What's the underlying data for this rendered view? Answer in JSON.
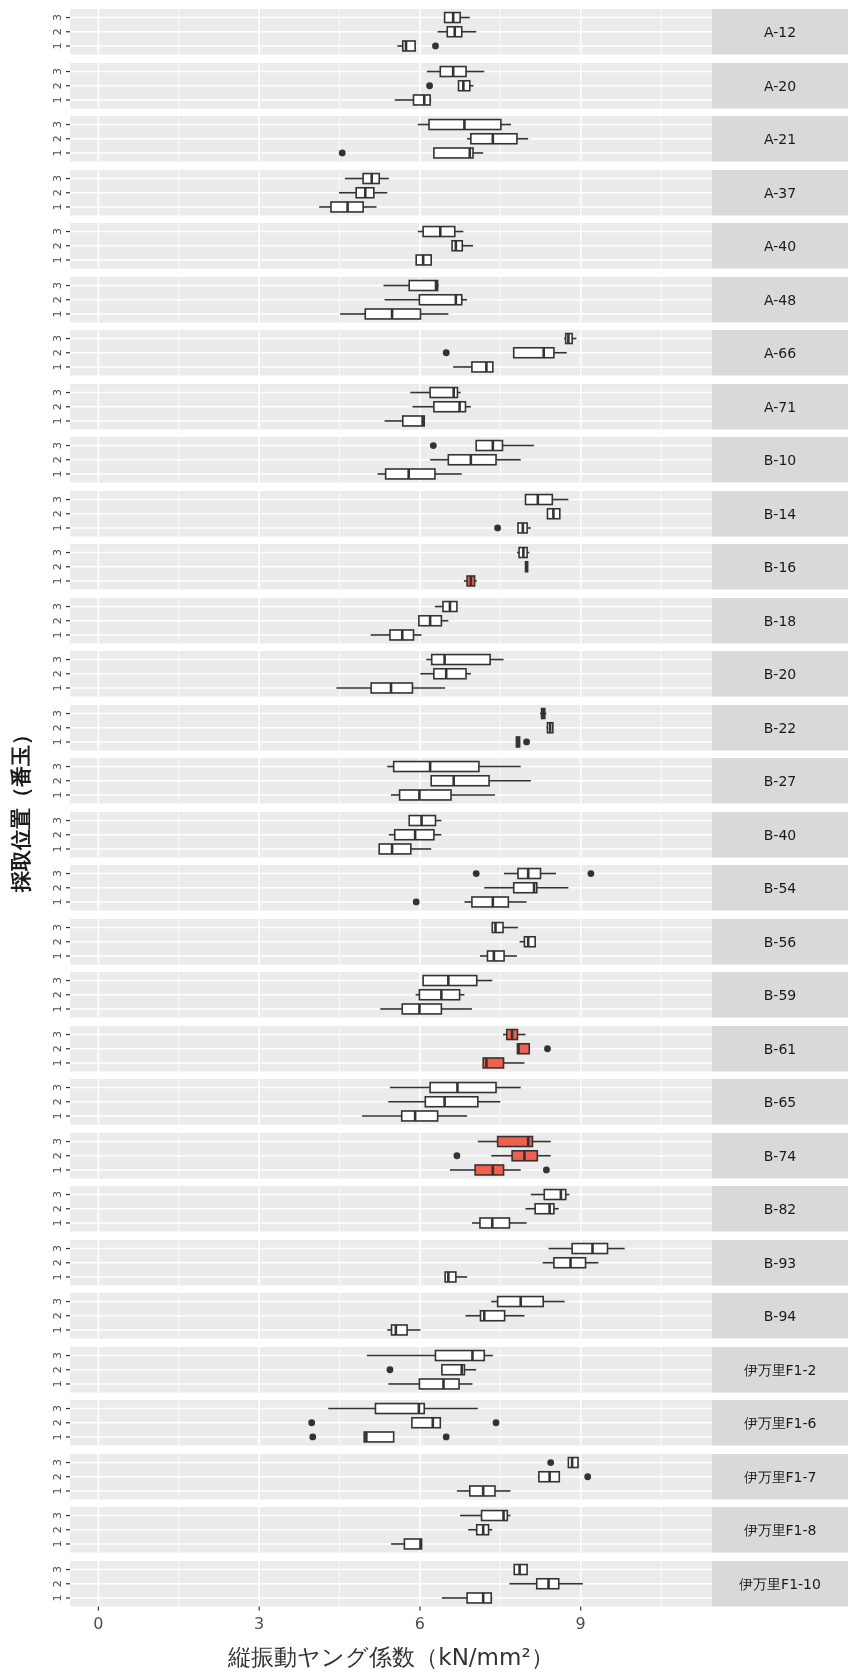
{
  "chart_data": [
    {
      "type": "box",
      "orientation": "horizontal",
      "annotations": [
        "A-12"
      ],
      "categories": [
        "3",
        "2",
        "1"
      ],
      "colors": [
        "#ffffff",
        "#ffffff",
        "#ffffff"
      ],
      "xlim": [
        -0.53,
        11.45
      ],
      "xticks": [
        0,
        3,
        6,
        9
      ],
      "grid": true,
      "tick_labels": "y",
      "boxes": [
        {
          "low": 6.45,
          "q1": 6.46,
          "median": 6.62,
          "q3": 6.75,
          "high": 6.93
        },
        {
          "low": 6.33,
          "q1": 6.51,
          "median": 6.65,
          "q3": 6.78,
          "high": 7.05
        },
        {
          "low": 5.58,
          "q1": 5.68,
          "median": 5.74,
          "q3": 5.91,
          "high": 5.91,
          "outliers": [
            6.29
          ]
        }
      ]
    },
    {
      "type": "box",
      "orientation": "horizontal",
      "annotations": [
        "A-20"
      ],
      "categories": [
        "3",
        "2",
        "1"
      ],
      "colors": [
        "#ffffff",
        "#ffffff",
        "#ffffff"
      ],
      "xlim": [
        -0.53,
        11.45
      ],
      "xticks": [
        0,
        3,
        6,
        9
      ],
      "grid": true,
      "tick_labels": "y",
      "boxes": [
        {
          "low": 6.13,
          "q1": 6.38,
          "median": 6.62,
          "q3": 6.86,
          "high": 7.2
        },
        {
          "low": 6.72,
          "q1": 6.72,
          "median": 6.81,
          "q3": 6.93,
          "high": 7.0,
          "outliers": [
            6.18
          ]
        },
        {
          "low": 5.53,
          "q1": 5.88,
          "median": 6.08,
          "q3": 6.19,
          "high": 6.21
        }
      ]
    },
    {
      "type": "box",
      "orientation": "horizontal",
      "annotations": [
        "A-21"
      ],
      "categories": [
        "3",
        "2",
        "1"
      ],
      "colors": [
        "#ffffff",
        "#ffffff",
        "#ffffff"
      ],
      "xlim": [
        -0.53,
        11.45
      ],
      "xticks": [
        0,
        3,
        6,
        9
      ],
      "grid": true,
      "tick_labels": "y",
      "boxes": [
        {
          "low": 5.96,
          "q1": 6.17,
          "median": 6.83,
          "q3": 7.51,
          "high": 7.7
        },
        {
          "low": 6.88,
          "q1": 6.95,
          "median": 7.36,
          "q3": 7.81,
          "high": 8.02
        },
        {
          "low": 6.26,
          "q1": 6.26,
          "median": 6.93,
          "q3": 6.99,
          "high": 7.18,
          "outliers": [
            4.55
          ]
        }
      ]
    },
    {
      "type": "box",
      "orientation": "horizontal",
      "annotations": [
        "A-37"
      ],
      "categories": [
        "3",
        "2",
        "1"
      ],
      "colors": [
        "#ffffff",
        "#ffffff",
        "#ffffff"
      ],
      "xlim": [
        -0.53,
        11.45
      ],
      "xticks": [
        0,
        3,
        6,
        9
      ],
      "grid": true,
      "tick_labels": "y",
      "boxes": [
        {
          "low": 4.6,
          "q1": 4.94,
          "median": 5.1,
          "q3": 5.24,
          "high": 5.42
        },
        {
          "low": 4.49,
          "q1": 4.81,
          "median": 4.98,
          "q3": 5.14,
          "high": 5.39
        },
        {
          "low": 4.12,
          "q1": 4.34,
          "median": 4.65,
          "q3": 4.94,
          "high": 5.19
        }
      ]
    },
    {
      "type": "box",
      "orientation": "horizontal",
      "annotations": [
        "A-40"
      ],
      "categories": [
        "3",
        "2",
        "1"
      ],
      "colors": [
        "#ffffff",
        "#ffffff",
        "#ffffff"
      ],
      "xlim": [
        -0.53,
        11.45
      ],
      "xticks": [
        0,
        3,
        6,
        9
      ],
      "grid": true,
      "tick_labels": "y",
      "boxes": [
        {
          "low": 5.96,
          "q1": 6.06,
          "median": 6.38,
          "q3": 6.65,
          "high": 6.81
        },
        {
          "low": 6.6,
          "q1": 6.6,
          "median": 6.67,
          "q3": 6.79,
          "high": 6.99
        },
        {
          "low": 5.93,
          "q1": 5.93,
          "median": 6.06,
          "q3": 6.21,
          "high": 6.21
        }
      ]
    },
    {
      "type": "box",
      "orientation": "horizontal",
      "annotations": [
        "A-48"
      ],
      "categories": [
        "3",
        "2",
        "1"
      ],
      "colors": [
        "#ffffff",
        "#ffffff",
        "#ffffff"
      ],
      "xlim": [
        -0.53,
        11.45
      ],
      "xticks": [
        0,
        3,
        6,
        9
      ],
      "grid": true,
      "tick_labels": "y",
      "boxes": [
        {
          "low": 5.32,
          "q1": 5.8,
          "median": 6.3,
          "q3": 6.33,
          "high": 6.35
        },
        {
          "low": 5.34,
          "q1": 5.99,
          "median": 6.67,
          "q3": 6.78,
          "high": 6.88
        },
        {
          "low": 4.51,
          "q1": 4.98,
          "median": 5.48,
          "q3": 6.01,
          "high": 6.53
        }
      ]
    },
    {
      "type": "box",
      "orientation": "horizontal",
      "annotations": [
        "A-66"
      ],
      "categories": [
        "3",
        "2",
        "1"
      ],
      "colors": [
        "#ffffff",
        "#ffffff",
        "#ffffff"
      ],
      "xlim": [
        -0.53,
        11.45
      ],
      "xticks": [
        0,
        3,
        6,
        9
      ],
      "grid": true,
      "tick_labels": "y",
      "boxes": [
        {
          "low": 8.69,
          "q1": 8.72,
          "median": 8.77,
          "q3": 8.84,
          "high": 8.92
        },
        {
          "low": 7.75,
          "q1": 7.75,
          "median": 8.31,
          "q3": 8.5,
          "high": 8.74,
          "outliers": [
            6.49
          ]
        },
        {
          "low": 6.62,
          "q1": 6.97,
          "median": 7.24,
          "q3": 7.36,
          "high": 7.36
        }
      ]
    },
    {
      "type": "box",
      "orientation": "horizontal",
      "annotations": [
        "A-71"
      ],
      "categories": [
        "3",
        "2",
        "1"
      ],
      "colors": [
        "#ffffff",
        "#ffffff",
        "#ffffff"
      ],
      "xlim": [
        -0.53,
        11.45
      ],
      "xticks": [
        0,
        3,
        6,
        9
      ],
      "grid": true,
      "tick_labels": "y",
      "boxes": [
        {
          "low": 5.82,
          "q1": 6.19,
          "median": 6.63,
          "q3": 6.7,
          "high": 6.76
        },
        {
          "low": 5.86,
          "q1": 6.26,
          "median": 6.74,
          "q3": 6.85,
          "high": 6.95
        },
        {
          "low": 5.34,
          "q1": 5.68,
          "median": 6.05,
          "q3": 6.08,
          "high": 6.08
        }
      ]
    },
    {
      "type": "box",
      "orientation": "horizontal",
      "annotations": [
        "B-10"
      ],
      "categories": [
        "3",
        "2",
        "1"
      ],
      "colors": [
        "#ffffff",
        "#ffffff",
        "#ffffff"
      ],
      "xlim": [
        -0.53,
        11.45
      ],
      "xticks": [
        0,
        3,
        6,
        9
      ],
      "grid": true,
      "tick_labels": "y",
      "boxes": [
        {
          "low": 7.05,
          "q1": 7.05,
          "median": 7.36,
          "q3": 7.54,
          "high": 8.13,
          "outliers": [
            6.25
          ]
        },
        {
          "low": 6.19,
          "q1": 6.53,
          "median": 6.95,
          "q3": 7.42,
          "high": 7.88
        },
        {
          "low": 5.21,
          "q1": 5.36,
          "median": 5.79,
          "q3": 6.28,
          "high": 6.78
        }
      ]
    },
    {
      "type": "box",
      "orientation": "horizontal",
      "annotations": [
        "B-14"
      ],
      "categories": [
        "3",
        "2",
        "1"
      ],
      "colors": [
        "#ffffff",
        "#ffffff",
        "#ffffff"
      ],
      "xlim": [
        -0.53,
        11.45
      ],
      "xticks": [
        0,
        3,
        6,
        9
      ],
      "grid": true,
      "tick_labels": "y",
      "boxes": [
        {
          "low": 7.97,
          "q1": 7.97,
          "median": 8.2,
          "q3": 8.47,
          "high": 8.77
        },
        {
          "low": 8.38,
          "q1": 8.38,
          "median": 8.49,
          "q3": 8.61,
          "high": 8.61
        },
        {
          "low": 7.83,
          "q1": 7.83,
          "median": 7.92,
          "q3": 8.0,
          "high": 8.07,
          "outliers": [
            7.45
          ]
        }
      ]
    },
    {
      "type": "box",
      "orientation": "horizontal",
      "annotations": [
        "B-16"
      ],
      "categories": [
        "3",
        "2",
        "1"
      ],
      "colors": [
        "#ffffff",
        "#ffffff",
        "#f0604d"
      ],
      "xlim": [
        -0.53,
        11.45
      ],
      "xticks": [
        0,
        3,
        6,
        9
      ],
      "grid": true,
      "tick_labels": "y",
      "boxes": [
        {
          "low": 7.81,
          "q1": 7.85,
          "median": 7.93,
          "q3": 8.0,
          "high": 8.04
        },
        {
          "low": 7.97,
          "q1": 7.97,
          "median": 7.99,
          "q3": 8.01,
          "high": 8.01
        },
        {
          "low": 6.82,
          "q1": 6.88,
          "median": 6.95,
          "q3": 7.02,
          "high": 7.06
        }
      ]
    },
    {
      "type": "box",
      "orientation": "horizontal",
      "annotations": [
        "B-18"
      ],
      "categories": [
        "3",
        "2",
        "1"
      ],
      "colors": [
        "#ffffff",
        "#ffffff",
        "#ffffff"
      ],
      "xlim": [
        -0.53,
        11.45
      ],
      "xticks": [
        0,
        3,
        6,
        9
      ],
      "grid": true,
      "tick_labels": "y",
      "boxes": [
        {
          "low": 6.28,
          "q1": 6.43,
          "median": 6.56,
          "q3": 6.69,
          "high": 6.69
        },
        {
          "low": 5.98,
          "q1": 5.98,
          "median": 6.19,
          "q3": 6.4,
          "high": 6.53
        },
        {
          "low": 5.08,
          "q1": 5.44,
          "median": 5.67,
          "q3": 5.88,
          "high": 6.03
        }
      ]
    },
    {
      "type": "box",
      "orientation": "horizontal",
      "annotations": [
        "B-20"
      ],
      "categories": [
        "3",
        "2",
        "1"
      ],
      "colors": [
        "#ffffff",
        "#ffffff",
        "#ffffff"
      ],
      "xlim": [
        -0.53,
        11.45
      ],
      "xticks": [
        0,
        3,
        6,
        9
      ],
      "grid": true,
      "tick_labels": "y",
      "boxes": [
        {
          "low": 6.12,
          "q1": 6.22,
          "median": 6.46,
          "q3": 7.31,
          "high": 7.56
        },
        {
          "low": 6.01,
          "q1": 6.26,
          "median": 6.49,
          "q3": 6.86,
          "high": 6.95
        },
        {
          "low": 4.44,
          "q1": 5.09,
          "median": 5.46,
          "q3": 5.86,
          "high": 6.47
        }
      ]
    },
    {
      "type": "box",
      "orientation": "horizontal",
      "annotations": [
        "B-22"
      ],
      "categories": [
        "3",
        "2",
        "1"
      ],
      "colors": [
        "#ffffff",
        "#ffffff",
        "#ffffff"
      ],
      "xlim": [
        -0.53,
        11.45
      ],
      "xticks": [
        0,
        3,
        6,
        9
      ],
      "grid": true,
      "tick_labels": "y",
      "boxes": [
        {
          "low": 8.24,
          "q1": 8.27,
          "median": 8.3,
          "q3": 8.33,
          "high": 8.36
        },
        {
          "low": 8.36,
          "q1": 8.38,
          "median": 8.43,
          "q3": 8.48,
          "high": 8.49
        },
        {
          "low": 7.8,
          "q1": 7.8,
          "median": 7.83,
          "q3": 7.86,
          "high": 7.86,
          "outliers": [
            7.99
          ]
        }
      ]
    },
    {
      "type": "box",
      "orientation": "horizontal",
      "annotations": [
        "B-27"
      ],
      "categories": [
        "3",
        "2",
        "1"
      ],
      "colors": [
        "#ffffff",
        "#ffffff",
        "#ffffff"
      ],
      "xlim": [
        -0.53,
        11.45
      ],
      "xticks": [
        0,
        3,
        6,
        9
      ],
      "grid": true,
      "tick_labels": "y",
      "boxes": [
        {
          "low": 5.39,
          "q1": 5.51,
          "median": 6.19,
          "q3": 7.1,
          "high": 7.88
        },
        {
          "low": 6.21,
          "q1": 6.21,
          "median": 6.63,
          "q3": 7.29,
          "high": 8.07
        },
        {
          "low": 5.46,
          "q1": 5.62,
          "median": 5.99,
          "q3": 6.58,
          "high": 7.4
        }
      ]
    },
    {
      "type": "box",
      "orientation": "horizontal",
      "annotations": [
        "B-40"
      ],
      "ylabel": "採取位置（番玉）",
      "categories": [
        "3",
        "2",
        "1"
      ],
      "colors": [
        "#ffffff",
        "#ffffff",
        "#ffffff"
      ],
      "xlim": [
        -0.53,
        11.45
      ],
      "xticks": [
        0,
        3,
        6,
        9
      ],
      "grid": true,
      "tick_labels": "y",
      "boxes": [
        {
          "low": 5.8,
          "q1": 5.8,
          "median": 6.03,
          "q3": 6.29,
          "high": 6.4
        },
        {
          "low": 5.42,
          "q1": 5.53,
          "median": 5.91,
          "q3": 6.26,
          "high": 6.4
        },
        {
          "low": 5.24,
          "q1": 5.24,
          "median": 5.48,
          "q3": 5.83,
          "high": 6.21
        }
      ]
    },
    {
      "type": "box",
      "orientation": "horizontal",
      "annotations": [
        "B-54"
      ],
      "categories": [
        "3",
        "2",
        "1"
      ],
      "colors": [
        "#ffffff",
        "#ffffff",
        "#ffffff"
      ],
      "xlim": [
        -0.53,
        11.45
      ],
      "xticks": [
        0,
        3,
        6,
        9
      ],
      "grid": true,
      "tick_labels": "y",
      "boxes": [
        {
          "low": 7.57,
          "q1": 7.83,
          "median": 8.02,
          "q3": 8.25,
          "high": 8.54,
          "outliers": [
            7.05,
            9.19
          ]
        },
        {
          "low": 7.2,
          "q1": 7.75,
          "median": 8.13,
          "q3": 8.18,
          "high": 8.77
        },
        {
          "low": 6.83,
          "q1": 6.97,
          "median": 7.36,
          "q3": 7.65,
          "high": 7.99,
          "outliers": [
            5.93
          ]
        }
      ]
    },
    {
      "type": "box",
      "orientation": "horizontal",
      "annotations": [
        "B-56"
      ],
      "categories": [
        "3",
        "2",
        "1"
      ],
      "colors": [
        "#ffffff",
        "#ffffff",
        "#ffffff"
      ],
      "xlim": [
        -0.53,
        11.45
      ],
      "xticks": [
        0,
        3,
        6,
        9
      ],
      "grid": true,
      "tick_labels": "y",
      "boxes": [
        {
          "low": 7.35,
          "q1": 7.35,
          "median": 7.41,
          "q3": 7.55,
          "high": 7.83
        },
        {
          "low": 7.86,
          "q1": 7.95,
          "median": 8.02,
          "q3": 8.15,
          "high": 8.15
        },
        {
          "low": 7.12,
          "q1": 7.26,
          "median": 7.38,
          "q3": 7.57,
          "high": 7.81
        }
      ]
    },
    {
      "type": "box",
      "orientation": "horizontal",
      "annotations": [
        "B-59"
      ],
      "categories": [
        "3",
        "2",
        "1"
      ],
      "colors": [
        "#ffffff",
        "#ffffff",
        "#ffffff"
      ],
      "xlim": [
        -0.53,
        11.45
      ],
      "xticks": [
        0,
        3,
        6,
        9
      ],
      "grid": true,
      "tick_labels": "y",
      "boxes": [
        {
          "low": 6.06,
          "q1": 6.06,
          "median": 6.53,
          "q3": 7.06,
          "high": 7.35
        },
        {
          "low": 5.92,
          "q1": 5.99,
          "median": 6.4,
          "q3": 6.74,
          "high": 6.83
        },
        {
          "low": 5.26,
          "q1": 5.67,
          "median": 5.99,
          "q3": 6.4,
          "high": 6.97
        }
      ]
    },
    {
      "type": "box",
      "orientation": "horizontal",
      "annotations": [
        "B-61"
      ],
      "categories": [
        "3",
        "2",
        "1"
      ],
      "colors": [
        "#f0604d",
        "#f0604d",
        "#f0604d"
      ],
      "xlim": [
        -0.53,
        11.45
      ],
      "xticks": [
        0,
        3,
        6,
        9
      ],
      "grid": true,
      "tick_labels": "y",
      "boxes": [
        {
          "low": 7.55,
          "q1": 7.62,
          "median": 7.72,
          "q3": 7.82,
          "high": 7.97
        },
        {
          "low": 7.82,
          "q1": 7.82,
          "median": 7.84,
          "q3": 8.04,
          "high": 8.04,
          "outliers": [
            8.38
          ]
        },
        {
          "low": 7.18,
          "q1": 7.18,
          "median": 7.24,
          "q3": 7.56,
          "high": 7.95
        }
      ]
    },
    {
      "type": "box",
      "orientation": "horizontal",
      "annotations": [
        "B-65"
      ],
      "categories": [
        "3",
        "2",
        "1"
      ],
      "colors": [
        "#ffffff",
        "#ffffff",
        "#ffffff"
      ],
      "xlim": [
        -0.53,
        11.45
      ],
      "xticks": [
        0,
        3,
        6,
        9
      ],
      "grid": true,
      "tick_labels": "y",
      "boxes": [
        {
          "low": 5.44,
          "q1": 6.19,
          "median": 6.7,
          "q3": 7.42,
          "high": 7.88
        },
        {
          "low": 5.41,
          "q1": 6.1,
          "median": 6.46,
          "q3": 7.08,
          "high": 7.5
        },
        {
          "low": 4.92,
          "q1": 5.66,
          "median": 5.91,
          "q3": 6.33,
          "high": 6.88
        }
      ]
    },
    {
      "type": "box",
      "orientation": "horizontal",
      "annotations": [
        "B-74"
      ],
      "categories": [
        "3",
        "2",
        "1"
      ],
      "colors": [
        "#f0604d",
        "#f0604d",
        "#f0604d"
      ],
      "xlim": [
        -0.53,
        11.45
      ],
      "xticks": [
        0,
        3,
        6,
        9
      ],
      "grid": true,
      "tick_labels": "y",
      "boxes": [
        {
          "low": 7.08,
          "q1": 7.45,
          "median": 8.02,
          "q3": 8.1,
          "high": 8.44
        },
        {
          "low": 7.33,
          "q1": 7.72,
          "median": 7.95,
          "q3": 8.19,
          "high": 8.44,
          "outliers": [
            6.69
          ]
        },
        {
          "low": 6.56,
          "q1": 7.03,
          "median": 7.36,
          "q3": 7.56,
          "high": 7.88,
          "outliers": [
            8.36
          ]
        }
      ]
    },
    {
      "type": "box",
      "orientation": "horizontal",
      "annotations": [
        "B-82"
      ],
      "categories": [
        "3",
        "2",
        "1"
      ],
      "colors": [
        "#ffffff",
        "#ffffff",
        "#ffffff"
      ],
      "xlim": [
        -0.53,
        11.45
      ],
      "xticks": [
        0,
        3,
        6,
        9
      ],
      "grid": true,
      "tick_labels": "y",
      "boxes": [
        {
          "low": 8.07,
          "q1": 8.32,
          "median": 8.63,
          "q3": 8.72,
          "high": 8.79
        },
        {
          "low": 7.97,
          "q1": 8.15,
          "median": 8.42,
          "q3": 8.5,
          "high": 8.59
        },
        {
          "low": 6.97,
          "q1": 7.12,
          "median": 7.35,
          "q3": 7.67,
          "high": 7.99
        }
      ]
    },
    {
      "type": "box",
      "orientation": "horizontal",
      "annotations": [
        "B-93"
      ],
      "categories": [
        "3",
        "2",
        "1"
      ],
      "colors": [
        "#ffffff",
        "#ffffff",
        "#ffffff"
      ],
      "xlim": [
        -0.53,
        11.45
      ],
      "xticks": [
        0,
        3,
        6,
        9
      ],
      "grid": true,
      "tick_labels": "y",
      "boxes": [
        {
          "low": 8.4,
          "q1": 8.84,
          "median": 9.22,
          "q3": 9.5,
          "high": 9.82
        },
        {
          "low": 8.29,
          "q1": 8.5,
          "median": 8.81,
          "q3": 9.09,
          "high": 9.33
        },
        {
          "low": 6.47,
          "q1": 6.47,
          "median": 6.53,
          "q3": 6.67,
          "high": 6.88
        }
      ]
    },
    {
      "type": "box",
      "orientation": "horizontal",
      "annotations": [
        "B-94"
      ],
      "categories": [
        "3",
        "2",
        "1"
      ],
      "colors": [
        "#ffffff",
        "#ffffff",
        "#ffffff"
      ],
      "xlim": [
        -0.53,
        11.45
      ],
      "xticks": [
        0,
        3,
        6,
        9
      ],
      "grid": true,
      "tick_labels": "y",
      "boxes": [
        {
          "low": 7.33,
          "q1": 7.45,
          "median": 7.88,
          "q3": 8.3,
          "high": 8.7
        },
        {
          "low": 6.85,
          "q1": 7.13,
          "median": 7.2,
          "q3": 7.58,
          "high": 7.95
        },
        {
          "low": 5.39,
          "q1": 5.47,
          "median": 5.55,
          "q3": 5.76,
          "high": 6.01
        }
      ]
    },
    {
      "type": "box",
      "orientation": "horizontal",
      "annotations": [
        "伊万里F1-2"
      ],
      "categories": [
        "3",
        "2",
        "1"
      ],
      "colors": [
        "#ffffff",
        "#ffffff",
        "#ffffff"
      ],
      "xlim": [
        -0.53,
        11.45
      ],
      "xticks": [
        0,
        3,
        6,
        9
      ],
      "grid": true,
      "tick_labels": "y",
      "boxes": [
        {
          "low": 5.01,
          "q1": 6.29,
          "median": 6.98,
          "q3": 7.2,
          "high": 7.36
        },
        {
          "low": 6.41,
          "q1": 6.41,
          "median": 6.78,
          "q3": 6.83,
          "high": 7.05,
          "outliers": [
            5.44
          ]
        },
        {
          "low": 5.41,
          "q1": 5.99,
          "median": 6.44,
          "q3": 6.73,
          "high": 6.98
        }
      ]
    },
    {
      "type": "box",
      "orientation": "horizontal",
      "annotations": [
        "伊万里F1-6"
      ],
      "categories": [
        "3",
        "2",
        "1"
      ],
      "colors": [
        "#ffffff",
        "#ffffff",
        "#ffffff"
      ],
      "xlim": [
        -0.53,
        11.45
      ],
      "xticks": [
        0,
        3,
        6,
        9
      ],
      "grid": true,
      "tick_labels": "y",
      "boxes": [
        {
          "low": 4.29,
          "q1": 5.17,
          "median": 5.98,
          "q3": 6.08,
          "high": 7.08
        },
        {
          "low": 5.85,
          "q1": 5.85,
          "median": 6.24,
          "q3": 6.38,
          "high": 6.38,
          "outliers": [
            3.98,
            7.42
          ]
        },
        {
          "low": 4.96,
          "q1": 4.96,
          "median": 5.0,
          "q3": 5.51,
          "high": 5.51,
          "outliers": [
            4.0,
            6.49
          ]
        }
      ]
    },
    {
      "type": "box",
      "orientation": "horizontal",
      "annotations": [
        "伊万里F1-7"
      ],
      "categories": [
        "3",
        "2",
        "1"
      ],
      "colors": [
        "#ffffff",
        "#ffffff",
        "#ffffff"
      ],
      "xlim": [
        -0.53,
        11.45
      ],
      "xticks": [
        0,
        3,
        6,
        9
      ],
      "grid": true,
      "tick_labels": "y",
      "boxes": [
        {
          "low": 8.77,
          "q1": 8.77,
          "median": 8.84,
          "q3": 8.95,
          "high": 8.95,
          "outliers": [
            8.44
          ]
        },
        {
          "low": 8.2,
          "q1": 8.22,
          "median": 8.42,
          "q3": 8.6,
          "high": 8.6,
          "outliers": [
            9.13
          ]
        },
        {
          "low": 6.69,
          "q1": 6.93,
          "median": 7.18,
          "q3": 7.4,
          "high": 7.69
        }
      ]
    },
    {
      "type": "box",
      "orientation": "horizontal",
      "annotations": [
        "伊万里F1-8"
      ],
      "categories": [
        "3",
        "2",
        "1"
      ],
      "colors": [
        "#ffffff",
        "#ffffff",
        "#ffffff"
      ],
      "xlim": [
        -0.53,
        11.45
      ],
      "xticks": [
        0,
        3,
        6,
        9
      ],
      "grid": true,
      "tick_labels": "y",
      "boxes": [
        {
          "low": 6.75,
          "q1": 7.15,
          "median": 7.56,
          "q3": 7.63,
          "high": 7.69
        },
        {
          "low": 6.9,
          "q1": 7.06,
          "median": 7.18,
          "q3": 7.28,
          "high": 7.35
        },
        {
          "low": 5.46,
          "q1": 5.71,
          "median": 6.01,
          "q3": 6.03,
          "high": 6.04
        }
      ]
    },
    {
      "type": "box",
      "orientation": "horizontal",
      "annotations": [
        "伊万里F1-10"
      ],
      "xlabel": "縦振動ヤング係数（kN/mm²）",
      "categories": [
        "3",
        "2",
        "1"
      ],
      "colors": [
        "#ffffff",
        "#ffffff",
        "#ffffff"
      ],
      "xlim": [
        -0.53,
        11.45
      ],
      "xticks": [
        0,
        3,
        6,
        9
      ],
      "grid": true,
      "boxes": [
        {
          "low": 7.76,
          "q1": 7.76,
          "median": 7.86,
          "q3": 8.0,
          "high": 8.0
        },
        {
          "low": 7.67,
          "q1": 8.18,
          "median": 8.4,
          "q3": 8.59,
          "high": 9.04
        },
        {
          "low": 6.41,
          "q1": 6.88,
          "median": 7.18,
          "q3": 7.33,
          "high": 7.35
        }
      ]
    }
  ]
}
